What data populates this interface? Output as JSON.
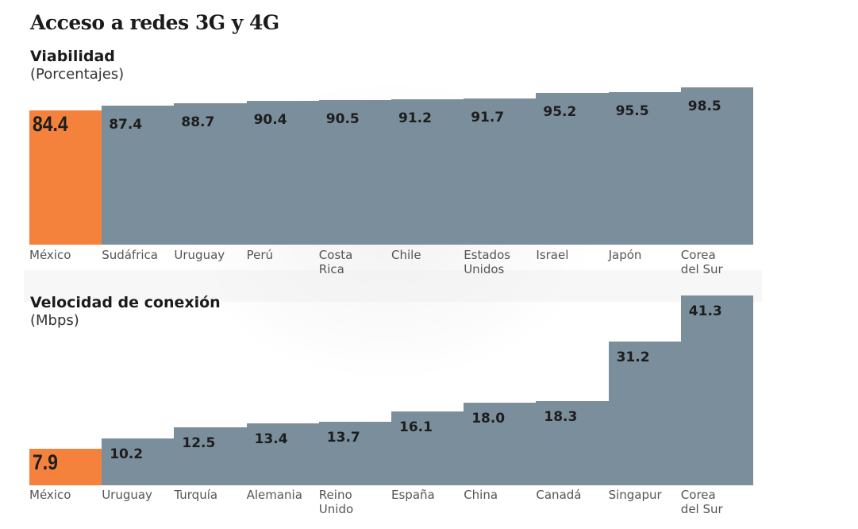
{
  "title": "Acceso a redes 3G y 4G",
  "colors": {
    "highlight": "#f4823c",
    "bar": "#7b8e9c"
  },
  "chart_data": [
    {
      "type": "bar",
      "title": "Viabilidad",
      "subtitle": "(Porcentajes)",
      "categories": [
        "México",
        "Sudáfrica",
        "Uruguay",
        "Perú",
        "Costa\nRica",
        "Chile",
        "Estados\nUnidos",
        "Israel",
        "Japón",
        "Corea\ndel Sur"
      ],
      "values": [
        84.4,
        87.4,
        88.7,
        90.4,
        90.5,
        91.2,
        91.7,
        95.2,
        95.5,
        98.5
      ],
      "labels": [
        "84.4",
        "87.4",
        "88.7",
        "90.4",
        "90.5",
        "91.2",
        "91.7",
        "95.2",
        "95.5",
        "98.5"
      ],
      "highlight_index": 0,
      "xlabel": "",
      "ylabel": "Porcentajes"
    },
    {
      "type": "bar",
      "title": "Velocidad de conexión",
      "subtitle": "(Mbps)",
      "categories": [
        "México",
        "Uruguay",
        "Turquía",
        "Alemania",
        "Reino\nUnido",
        "España",
        "China",
        "Canadá",
        "Singapur",
        "Corea\ndel Sur"
      ],
      "values": [
        7.9,
        10.2,
        12.5,
        13.4,
        13.7,
        16.1,
        18.0,
        18.3,
        31.2,
        41.3
      ],
      "labels": [
        "7.9",
        "10.2",
        "12.5",
        "13.4",
        "13.7",
        "16.1",
        "18.0",
        "18.3",
        "31.2",
        "41.3"
      ],
      "highlight_index": 0,
      "xlabel": "",
      "ylabel": "Mbps"
    }
  ]
}
